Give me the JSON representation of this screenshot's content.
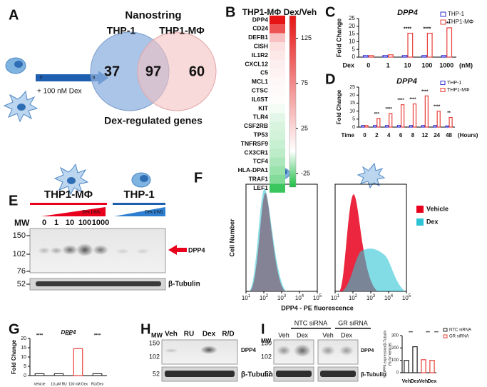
{
  "panel_labels": [
    "A",
    "B",
    "C",
    "D",
    "E",
    "F",
    "G",
    "H",
    "I"
  ],
  "venn": {
    "title": "Nanostring",
    "sets": [
      "THP-1",
      "THP1-MΦ"
    ],
    "only_first": 37,
    "both": 97,
    "only_second": 60,
    "caption": "Dex-regulated genes",
    "treatment": "+ 100 nM Dex",
    "timeline": [
      "0",
      "6"
    ]
  },
  "heatmap": {
    "title": "THP1-MΦ Dex/Veh",
    "genes": [
      "DPP4",
      "CD24",
      "DEFB1",
      "CISH",
      "IL1R2",
      "CXCL12",
      "C5",
      "MCL1",
      "CTSC",
      "IL6ST",
      "KIT",
      "TLR4",
      "CSF2RB",
      "TP53",
      "TNFRSF9",
      "CX3CR1",
      "TCF4",
      "HLA-DPA1",
      "TRAF1",
      "LEF1"
    ],
    "values": [
      150,
      110,
      40,
      20,
      15,
      10,
      8,
      5,
      3,
      2,
      -2,
      -5,
      -7,
      -8,
      -10,
      -12,
      -15,
      -18,
      -22,
      -35
    ],
    "clim": [
      -40,
      150
    ],
    "ticks": [
      125,
      75,
      25,
      -25
    ]
  },
  "chart_data": [
    {
      "type": "bar",
      "title": "DPP4",
      "x_label": "Dex",
      "x_unit": "(nM)",
      "y_label": "Fold Change",
      "categories": [
        "0",
        "1",
        "10",
        "100",
        "1000"
      ],
      "series": [
        {
          "name": "THP-1",
          "color": "#2f2fd0",
          "values": [
            1,
            1,
            1,
            1,
            1
          ]
        },
        {
          "name": "THP1-MΦ",
          "color": "#e8403a",
          "values": [
            1,
            1.5,
            15.5,
            15.5,
            19
          ]
        }
      ],
      "ylim": [
        0,
        25
      ],
      "yticks": [
        0,
        5,
        10,
        15,
        20,
        25
      ],
      "annotations": [
        null,
        null,
        "****",
        "****",
        "****"
      ]
    },
    {
      "type": "bar",
      "title": "DPP4",
      "x_label": "Time",
      "x_unit": "(Hours)",
      "y_label": "Fold Change",
      "categories": [
        "0",
        "2",
        "4",
        "6",
        "8",
        "12",
        "24",
        "48"
      ],
      "series": [
        {
          "name": "THP-1",
          "color": "#2f2fd0",
          "values": [
            1,
            1,
            1,
            1,
            1,
            1,
            1,
            0.7
          ]
        },
        {
          "name": "THP1-MΦ",
          "color": "#e8403a",
          "values": [
            1,
            5.5,
            8.5,
            14,
            14.5,
            19.5,
            10,
            6
          ]
        }
      ],
      "ylim": [
        0,
        25
      ],
      "yticks": [
        0,
        5,
        10,
        15,
        20,
        25
      ],
      "annotations": [
        null,
        "***",
        "****",
        "****",
        "****",
        "****",
        "****",
        "**"
      ]
    },
    {
      "type": "bar",
      "title": "DPP4",
      "y_label": "Fold Change",
      "categories": [
        "Vehicle",
        "10 μM RU",
        "100 nM Dex",
        "RU/Dex"
      ],
      "values": [
        1,
        1,
        14.5,
        1
      ],
      "colors": [
        "#333333",
        "#333333",
        "#e8403a",
        "#333333"
      ],
      "ylim": [
        0,
        20
      ],
      "yticks": [
        0,
        5,
        10,
        15,
        20
      ],
      "annotations": [
        "****",
        "****",
        null,
        "****"
      ]
    },
    {
      "type": "bar",
      "y_label": [
        "% DPP4 expression/β-Tubulin",
        "(% for Vehicle)"
      ],
      "categories": [
        "Veh",
        "Dex",
        "Veh",
        "Dex"
      ],
      "series": [
        {
          "name": "NTC siRNA",
          "color": "#222222",
          "values": [
            100,
            210,
            null,
            null
          ]
        },
        {
          "name": "GR siRNA",
          "color": "#e8403a",
          "values": [
            null,
            null,
            105,
            100
          ]
        }
      ],
      "ylim": [
        0,
        300
      ],
      "yticks": [
        0,
        100,
        200,
        300
      ],
      "annotations": [
        "***",
        "***",
        "***"
      ]
    }
  ],
  "blot_e": {
    "groups": [
      "THP1-MΦ",
      "THP-1"
    ],
    "gradient_label": [
      "Dex (nM)",
      "Dex (nM)"
    ],
    "mw_label": "MW",
    "lanes": [
      "0",
      "1",
      "10",
      "100",
      "1000"
    ],
    "markers": [
      "150",
      "102",
      "76",
      "52"
    ],
    "band_labels": [
      "DPP4",
      "β-Tubulin"
    ]
  },
  "flow": {
    "y_label": "Cell Number",
    "x_label": "DPP4 - PE fluorescence",
    "xtick_base": "10",
    "xtick_exponents": [
      "1",
      "2",
      "3",
      "4",
      "5"
    ],
    "legend": [
      "Vehicle",
      "Dex"
    ],
    "colors": [
      "#e8001c",
      "#2ec4d6"
    ]
  },
  "blot_h": {
    "mw_label": "MW",
    "lanes": [
      "Veh",
      "RU",
      "Dex",
      "R/D"
    ],
    "markers": [
      "150",
      "102",
      "52"
    ],
    "band_labels": [
      "DPP4",
      "β-Tubulin"
    ]
  },
  "blot_i": {
    "mw_label": "MW",
    "groups": [
      "NTC siRNA",
      "GR siRNA"
    ],
    "lanes": [
      "Veh",
      "Dex",
      "Veh",
      "Dex"
    ],
    "markers": [
      "150",
      "102",
      "52"
    ],
    "band_labels": [
      "DPP4",
      "β-Tubulin"
    ]
  }
}
